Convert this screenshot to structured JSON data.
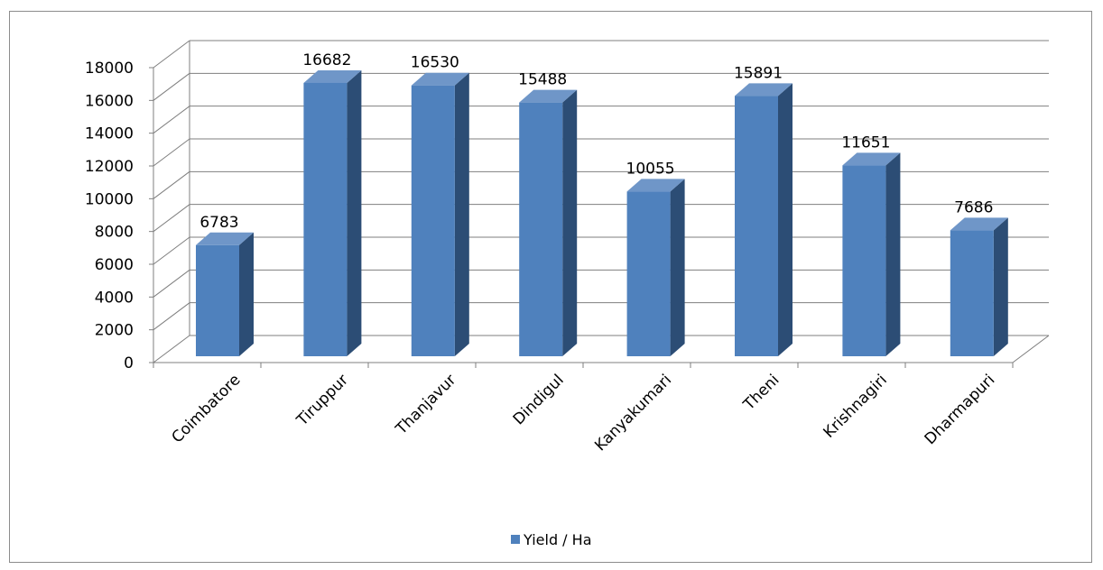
{
  "chart_data": {
    "type": "bar",
    "style": "3d-column",
    "categories": [
      "Coimbatore",
      "Tiruppur",
      "Thanjavur",
      "Dindigul",
      "Kanyakumari",
      "Theni",
      "Krishnagiri",
      "Dharmapuri"
    ],
    "series": [
      {
        "name": "Yield / Ha",
        "values": [
          6783,
          16682,
          16530,
          15488,
          10055,
          15891,
          11651,
          7686
        ],
        "color": "#4F81BD"
      }
    ],
    "y_ticks": [
      "0",
      "2000",
      "4000",
      "6000",
      "8000",
      "10000",
      "12000",
      "14000",
      "16000",
      "18000"
    ],
    "data_labels": [
      "6783",
      "16682",
      "16530",
      "15488",
      "10055",
      "15891",
      "11651",
      "7686"
    ],
    "ylim": [
      0,
      18000
    ],
    "grid": true,
    "legend_position": "bottom"
  },
  "colors": {
    "bar_front": "#4F81BD",
    "bar_side": "#2C4D75",
    "bar_top": "#6F96C8",
    "gridline": "#7f7f7f",
    "frame": "#8c8c8c"
  }
}
